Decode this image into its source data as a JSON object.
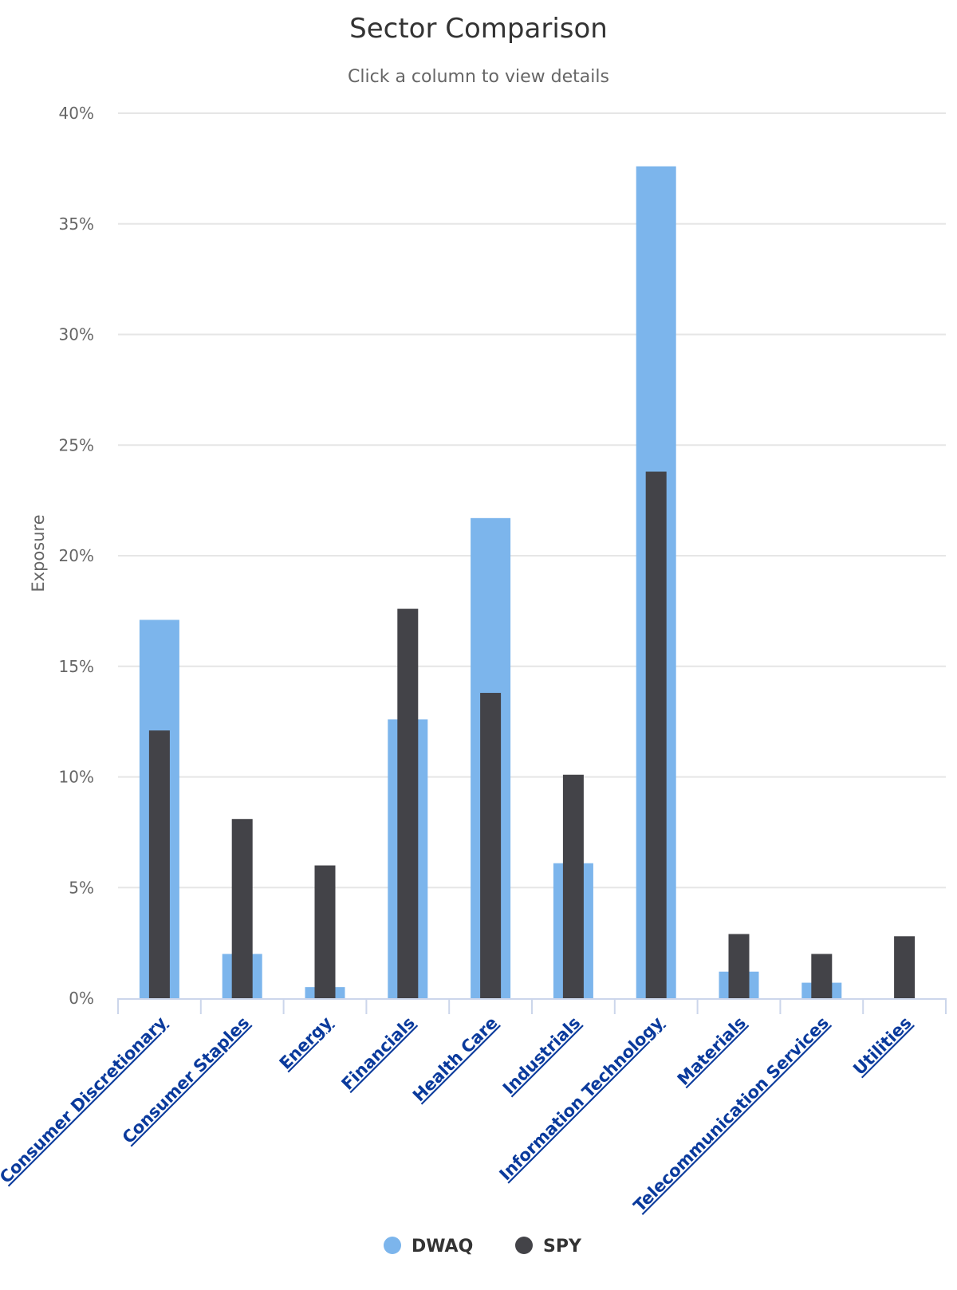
{
  "chart_data": {
    "type": "bar",
    "title": "Sector Comparison",
    "subtitle": "Click a column to view details",
    "ylabel": "Exposure",
    "xlabel": "",
    "ylim": [
      0,
      40
    ],
    "yticks": [
      "0%",
      "5%",
      "10%",
      "15%",
      "20%",
      "25%",
      "30%",
      "35%",
      "40%"
    ],
    "categories": [
      "Consumer Discretionary",
      "Consumer Staples",
      "Energy",
      "Financials",
      "Health Care",
      "Industrials",
      "Information Technology",
      "Materials",
      "Telecommunication Services",
      "Utilities"
    ],
    "series": [
      {
        "name": "DWAQ",
        "color": "#7cb5ec",
        "values": [
          17.1,
          2.0,
          0.5,
          12.6,
          21.7,
          6.1,
          37.6,
          1.2,
          0.7,
          0.0
        ]
      },
      {
        "name": "SPY",
        "color": "#434348",
        "values": [
          12.1,
          8.1,
          6.0,
          17.6,
          13.8,
          10.1,
          23.8,
          2.9,
          2.0,
          2.8
        ]
      }
    ],
    "grid": true,
    "legend": "bottom-center"
  }
}
